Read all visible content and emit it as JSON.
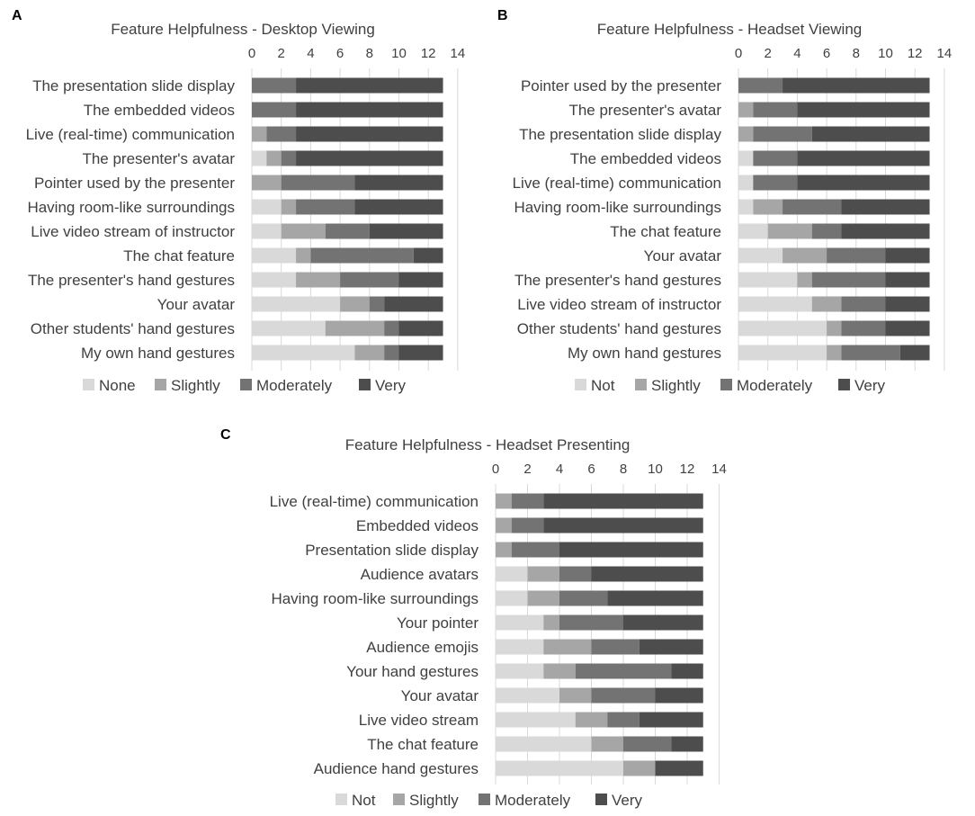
{
  "colors": {
    "None": "#d9d9d9",
    "Not": "#d9d9d9",
    "Slightly": "#a6a6a6",
    "Moderately": "#737373",
    "Very": "#4d4d4d",
    "gridline": "#d9d9d9",
    "text": "#404040"
  },
  "chart_data": [
    {
      "panel": "A",
      "type": "bar",
      "orientation": "horizontal",
      "stacked": true,
      "title": "Feature Helpfulness - Desktop Viewing",
      "xlim": [
        0,
        14
      ],
      "xticks": [
        0,
        2,
        4,
        6,
        8,
        10,
        12,
        14
      ],
      "legend_position": "bottom",
      "categories": [
        "The presentation slide display",
        "The embedded videos",
        "Live (real-time) communication",
        "The presenter's avatar",
        "Pointer used by the presenter",
        "Having room-like surroundings",
        "Live video stream of instructor",
        "The chat feature",
        "The presenter's hand gestures",
        "Your avatar",
        "Other students' hand gestures",
        "My own hand gestures"
      ],
      "series": [
        {
          "name": "None",
          "values": [
            0,
            0,
            0,
            1,
            0,
            2,
            2,
            3,
            3,
            6,
            5,
            7
          ]
        },
        {
          "name": "Slightly",
          "values": [
            0,
            0,
            1,
            1,
            2,
            1,
            3,
            1,
            3,
            2,
            4,
            2
          ]
        },
        {
          "name": "Moderately",
          "values": [
            3,
            3,
            2,
            1,
            5,
            4,
            3,
            7,
            4,
            1,
            1,
            1
          ]
        },
        {
          "name": "Very",
          "values": [
            10,
            10,
            10,
            10,
            6,
            6,
            5,
            2,
            3,
            4,
            3,
            3
          ]
        }
      ]
    },
    {
      "panel": "B",
      "type": "bar",
      "orientation": "horizontal",
      "stacked": true,
      "title": "Feature Helpfulness - Headset Viewing",
      "xlim": [
        0,
        14
      ],
      "xticks": [
        0,
        2,
        4,
        6,
        8,
        10,
        12,
        14
      ],
      "legend_position": "bottom",
      "categories": [
        "Pointer used by the presenter",
        "The presenter's avatar",
        "The presentation slide display",
        "The embedded videos",
        "Live (real-time) communication",
        "Having room-like surroundings",
        "The chat feature",
        "Your avatar",
        "The presenter's hand gestures",
        "Live video stream of instructor",
        "Other students' hand gestures",
        "My own hand gestures"
      ],
      "series": [
        {
          "name": "Not",
          "values": [
            0,
            0,
            0,
            1,
            1,
            1,
            2,
            3,
            4,
            5,
            6,
            6
          ]
        },
        {
          "name": "Slightly",
          "values": [
            0,
            1,
            1,
            0,
            0,
            2,
            3,
            3,
            1,
            2,
            1,
            1
          ]
        },
        {
          "name": "Moderately",
          "values": [
            3,
            3,
            4,
            3,
            3,
            4,
            2,
            4,
            5,
            3,
            3,
            4
          ]
        },
        {
          "name": "Very",
          "values": [
            10,
            9,
            8,
            9,
            9,
            6,
            6,
            3,
            3,
            3,
            3,
            2
          ]
        }
      ]
    },
    {
      "panel": "C",
      "type": "bar",
      "orientation": "horizontal",
      "stacked": true,
      "title": "Feature Helpfulness - Headset Presenting",
      "xlim": [
        0,
        14
      ],
      "xticks": [
        0,
        2,
        4,
        6,
        8,
        10,
        12,
        14
      ],
      "legend_position": "bottom",
      "categories": [
        "Live (real-time) communication",
        "Embedded videos",
        "Presentation slide display",
        "Audience avatars",
        "Having room-like surroundings",
        "Your pointer",
        "Audience emojis",
        "Your hand gestures",
        "Your avatar",
        "Live video stream",
        "The chat feature",
        "Audience hand gestures"
      ],
      "series": [
        {
          "name": "Not",
          "values": [
            0,
            0,
            0,
            2,
            2,
            3,
            3,
            3,
            4,
            5,
            6,
            8
          ]
        },
        {
          "name": "Slightly",
          "values": [
            1,
            1,
            1,
            2,
            2,
            1,
            3,
            2,
            2,
            2,
            2,
            2
          ]
        },
        {
          "name": "Moderately",
          "values": [
            2,
            2,
            3,
            2,
            3,
            4,
            3,
            6,
            4,
            2,
            3,
            0
          ]
        },
        {
          "name": "Very",
          "values": [
            10,
            10,
            9,
            7,
            6,
            5,
            4,
            2,
            3,
            4,
            2,
            3
          ]
        }
      ]
    }
  ]
}
